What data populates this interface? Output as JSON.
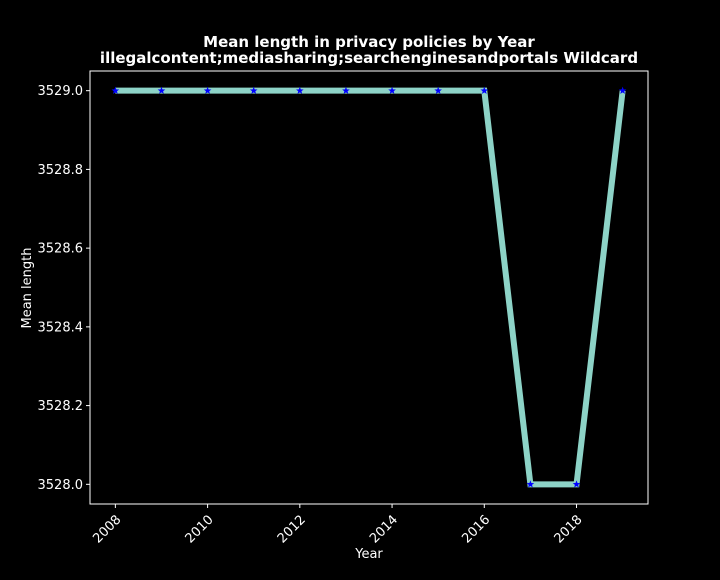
{
  "chart_data": {
    "type": "line",
    "title": "Mean length in privacy policies by Year",
    "subtitle": "illegalcontent;mediasharing;searchenginesandportals Wildcard",
    "xlabel": "Year",
    "ylabel": "Mean length",
    "x": [
      2008,
      2009,
      2010,
      2011,
      2012,
      2013,
      2014,
      2015,
      2016,
      2017,
      2018,
      2019
    ],
    "series": [
      {
        "values": [
          3529.0,
          3529.0,
          3529.0,
          3529.0,
          3529.0,
          3529.0,
          3529.0,
          3529.0,
          3529.0,
          3528.0,
          3528.0,
          3529.0
        ],
        "line_color": "#8dd3c7",
        "marker_color": "#0000ff",
        "marker": "star"
      }
    ],
    "xlim": [
      2007.45,
      2019.55
    ],
    "ylim": [
      3527.95,
      3529.05
    ],
    "xticks": [
      "2008",
      "2010",
      "2012",
      "2014",
      "2016",
      "2018"
    ],
    "yticks": [
      "3528.0",
      "3528.2",
      "3528.4",
      "3528.6",
      "3528.8",
      "3529.0"
    ],
    "grid": false,
    "background": "#000000",
    "foreground": "#ffffff"
  }
}
